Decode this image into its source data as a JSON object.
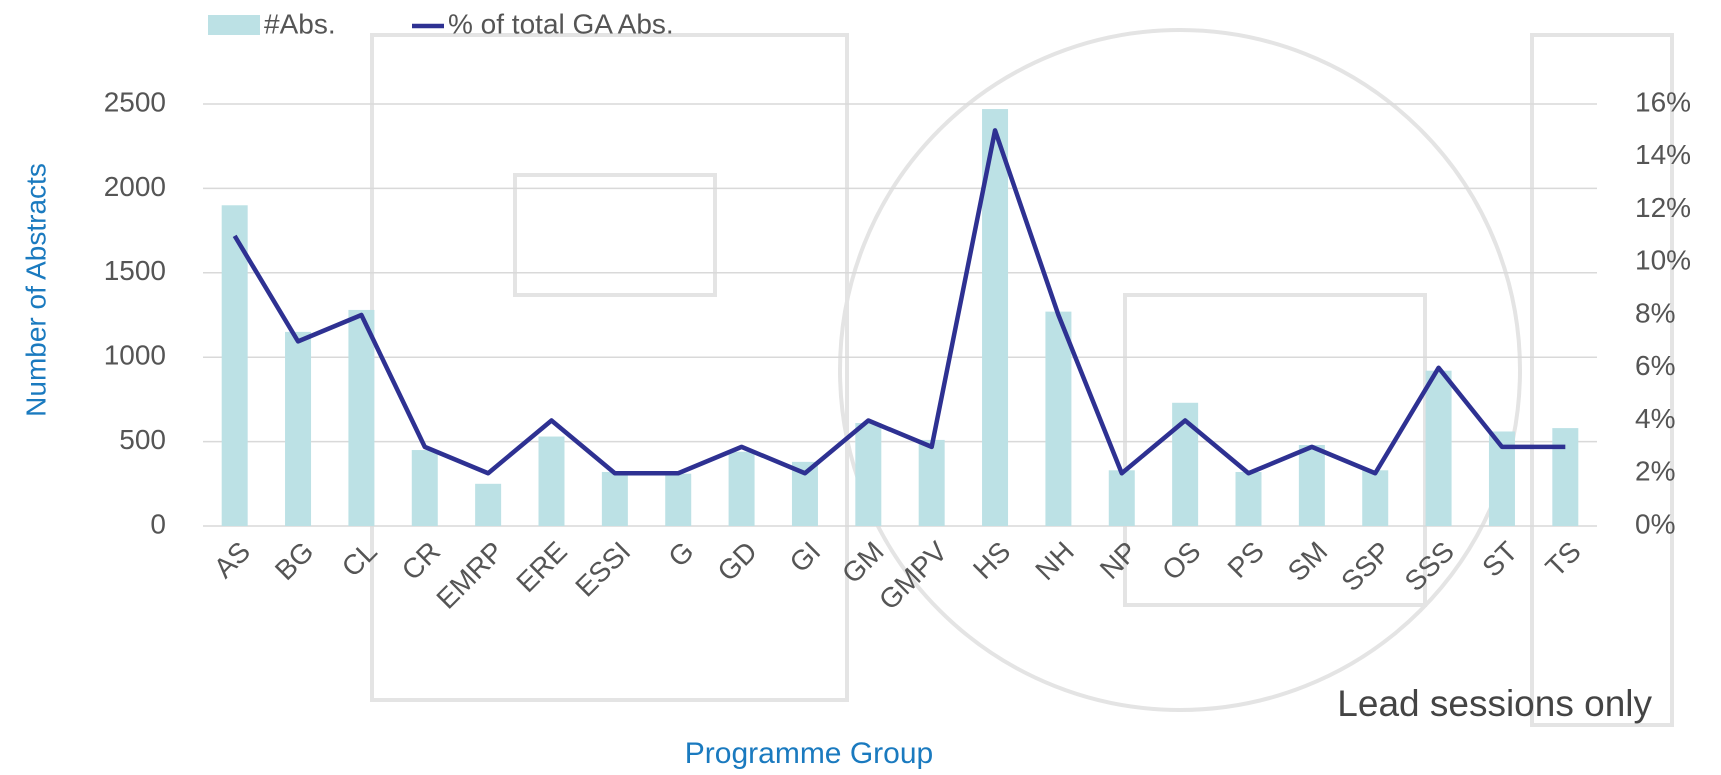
{
  "chart_data": {
    "type": "bar_line",
    "legend_position": "top-left",
    "y_label": "Number of Abstracts",
    "x_label": "Programme Group",
    "annotation": "Lead sessions only",
    "categories": [
      "AS",
      "BG",
      "CL",
      "CR",
      "EMRP",
      "ERE",
      "ESSI",
      "G",
      "GD",
      "GI",
      "GM",
      "GMPV",
      "HS",
      "NH",
      "NP",
      "OS",
      "PS",
      "SM",
      "SSP",
      "SSS",
      "ST",
      "TS"
    ],
    "series": [
      {
        "name": "#Abs.",
        "color": "#bce1e5",
        "values": [
          1900,
          1150,
          1280,
          450,
          250,
          530,
          320,
          310,
          440,
          380,
          610,
          510,
          2470,
          1270,
          330,
          730,
          320,
          480,
          330,
          920,
          560,
          580
        ]
      },
      {
        "name": "% of total GA Abs.",
        "color": "#2e3192",
        "axis": "y2",
        "values": [
          11,
          7,
          8,
          3,
          2,
          4,
          2,
          2,
          3,
          2,
          4,
          3,
          15,
          8,
          2,
          4,
          2,
          3,
          2,
          6,
          3,
          3
        ]
      }
    ],
    "ylim": [
      0,
      2500
    ],
    "yticks": [
      0,
      500,
      1000,
      1500,
      2000,
      2500
    ],
    "y2lim": [
      0,
      16
    ],
    "y2ticks": [
      {
        "value": 0,
        "label": "0%"
      },
      {
        "value": 2,
        "label": "2%"
      },
      {
        "value": 4,
        "label": "4%"
      },
      {
        "value": 6,
        "label": "6%"
      },
      {
        "value": 8,
        "label": "8%"
      },
      {
        "value": 10,
        "label": "10%"
      },
      {
        "value": 12,
        "label": "12%"
      },
      {
        "value": 14,
        "label": "14%"
      },
      {
        "value": 16,
        "label": "16%"
      }
    ],
    "grid": true
  }
}
